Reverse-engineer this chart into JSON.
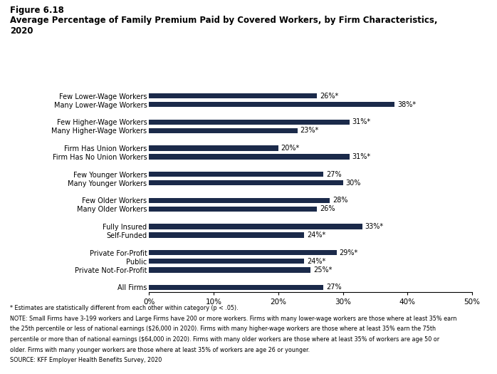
{
  "title_line1": "Figure 6.18",
  "title_line2": "Average Percentage of Family Premium Paid by Covered Workers, by Firm Characteristics,",
  "title_line3": "2020",
  "categories": [
    "Few Lower-Wage Workers",
    "Many Lower-Wage Workers",
    "",
    "Few Higher-Wage Workers",
    "Many Higher-Wage Workers",
    "",
    "Firm Has Union Workers",
    "Firm Has No Union Workers",
    "",
    "Few Younger Workers",
    "Many Younger Workers",
    "",
    "Few Older Workers",
    "Many Older Workers",
    "",
    "Fully Insured",
    "Self-Funded",
    "",
    "Private For-Profit",
    "Public",
    "Private Not-For-Profit",
    "",
    "All Firms"
  ],
  "values": [
    26,
    38,
    0,
    31,
    23,
    0,
    20,
    31,
    0,
    27,
    30,
    0,
    28,
    26,
    0,
    33,
    24,
    0,
    29,
    24,
    25,
    0,
    27
  ],
  "labels": [
    "26%*",
    "38%*",
    "",
    "31%*",
    "23%*",
    "",
    "20%*",
    "31%*",
    "",
    "27%",
    "30%",
    "",
    "28%",
    "26%",
    "",
    "33%*",
    "24%*",
    "",
    "29%*",
    "24%*",
    "25%*",
    "",
    "27%"
  ],
  "bar_color": "#1b2a4a",
  "background_color": "#ffffff",
  "xlim": [
    0,
    50
  ],
  "xticks": [
    0,
    10,
    20,
    30,
    40,
    50
  ],
  "xticklabels": [
    "0%",
    "10%",
    "20%",
    "30%",
    "40%",
    "50%"
  ],
  "footnote1": "* Estimates are statistically different from each other within category (p < .05).",
  "footnote2": "NOTE: Small Firms have 3-199 workers and Large Firms have 200 or more workers. Firms with many lower-wage workers are those where at least 35% earn",
  "footnote3": "the 25th percentile or less of national earnings ($26,000 in 2020). Firms with many higher-wage workers are those where at least 35% earn the 75th",
  "footnote4": "percentile or more than of national earnings ($64,000 in 2020). Firms with many older workers are those where at least 35% of workers are age 50 or",
  "footnote5": "older. Firms with many younger workers are those where at least 35% of workers are age 26 or younger.",
  "footnote6": "SOURCE: KFF Employer Health Benefits Survey, 2020"
}
